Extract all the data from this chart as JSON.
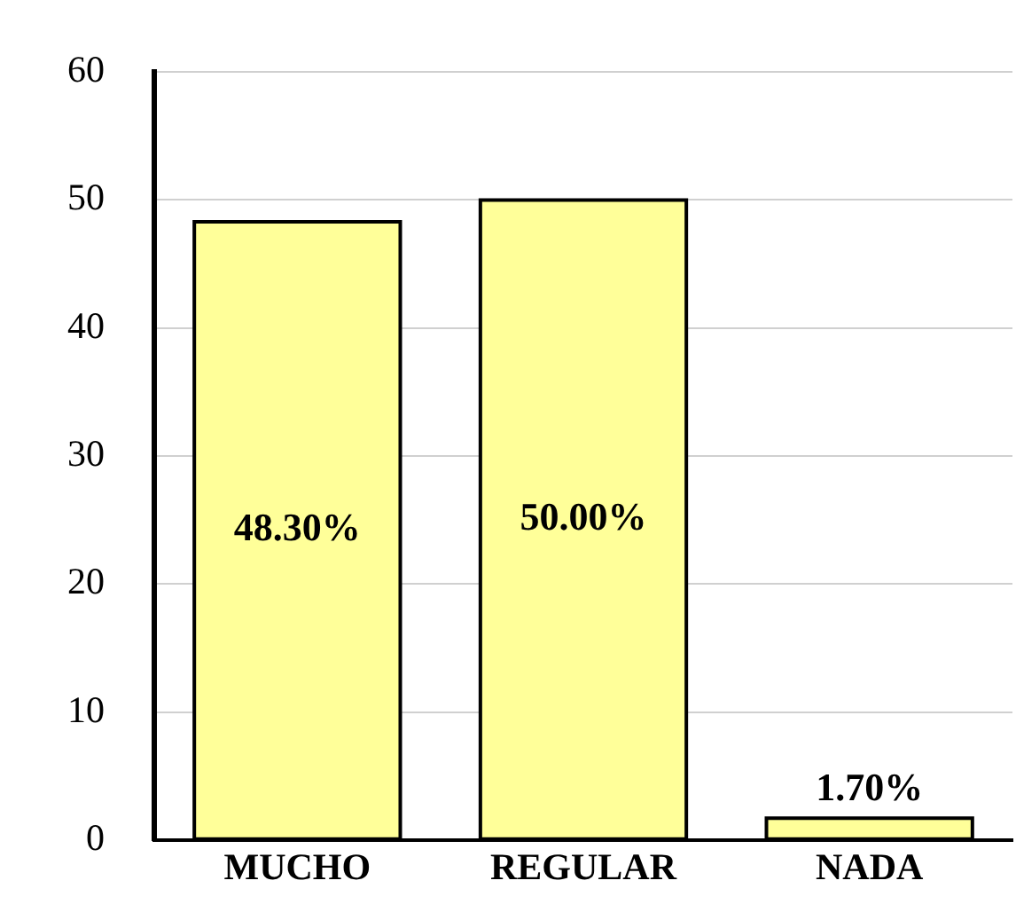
{
  "chart_data": {
    "type": "bar",
    "categories": [
      "MUCHO",
      "REGULAR",
      "NADA"
    ],
    "values": [
      48.3,
      50,
      1.7
    ],
    "color": "#ffff99",
    "value_labels": [
      "48.30%",
      "50.00%",
      "1.70%"
    ],
    "ylim": [
      0,
      60
    ],
    "yticks": [
      0,
      10,
      20,
      30,
      40,
      50,
      60
    ],
    "grid": "y",
    "legend": false
  }
}
